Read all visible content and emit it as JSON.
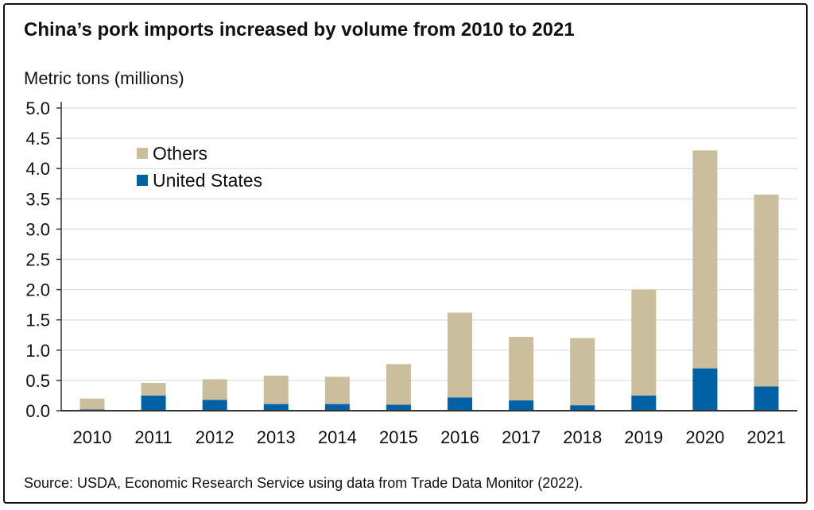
{
  "chart_data": {
    "type": "bar",
    "stacked": true,
    "title": "China’s pork imports increased by volume from 2010 to 2021",
    "ylabel": "Metric tons (millions)",
    "xlabel": "",
    "ylim": [
      0,
      5.0
    ],
    "yticks": [
      "0.0",
      "0.5",
      "1.0",
      "1.5",
      "2.0",
      "2.5",
      "3.0",
      "3.5",
      "4.0",
      "4.5",
      "5.0"
    ],
    "grid": true,
    "legend_position": "top-left",
    "categories": [
      "2010",
      "2011",
      "2012",
      "2013",
      "2014",
      "2015",
      "2016",
      "2017",
      "2018",
      "2019",
      "2020",
      "2021"
    ],
    "series": [
      {
        "name": "United States",
        "color": "#0061a5",
        "values": [
          0.02,
          0.25,
          0.18,
          0.11,
          0.11,
          0.1,
          0.22,
          0.17,
          0.09,
          0.25,
          0.7,
          0.4
        ]
      },
      {
        "name": "Others",
        "color": "#cbbe9c",
        "values": [
          0.18,
          0.21,
          0.34,
          0.47,
          0.45,
          0.67,
          1.4,
          1.05,
          1.11,
          1.75,
          3.6,
          3.17
        ]
      }
    ],
    "source": "Source: USDA, Economic Research Service using data from Trade Data Monitor (2022)."
  }
}
